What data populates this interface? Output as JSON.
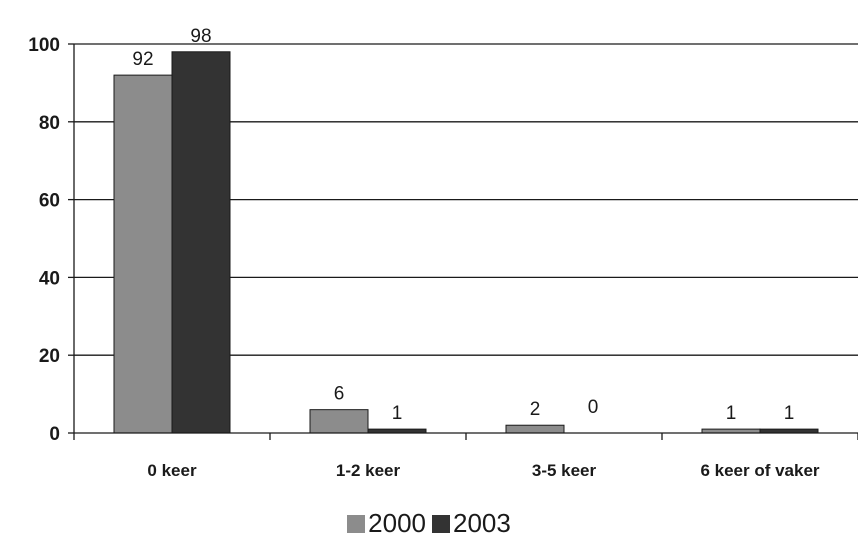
{
  "chart_data": {
    "type": "bar",
    "title": "",
    "xlabel": "",
    "ylabel": "",
    "categories": [
      "0 keer",
      "1-2 keer",
      "3-5 keer",
      "6 keer of vaker"
    ],
    "series": [
      {
        "name": "2000",
        "values": [
          92,
          6,
          2,
          1
        ],
        "color": "#8c8c8c"
      },
      {
        "name": "2003",
        "values": [
          98,
          1,
          0,
          1
        ],
        "color": "#333333"
      }
    ],
    "data_labels": [
      [
        "92",
        "6",
        "2",
        "1"
      ],
      [
        "98",
        "1",
        "0",
        "1"
      ]
    ],
    "ylim": [
      0,
      100
    ],
    "yticks": [
      "0",
      "20",
      "40",
      "60",
      "80",
      "100"
    ],
    "grid": true,
    "legend": "bottom"
  }
}
